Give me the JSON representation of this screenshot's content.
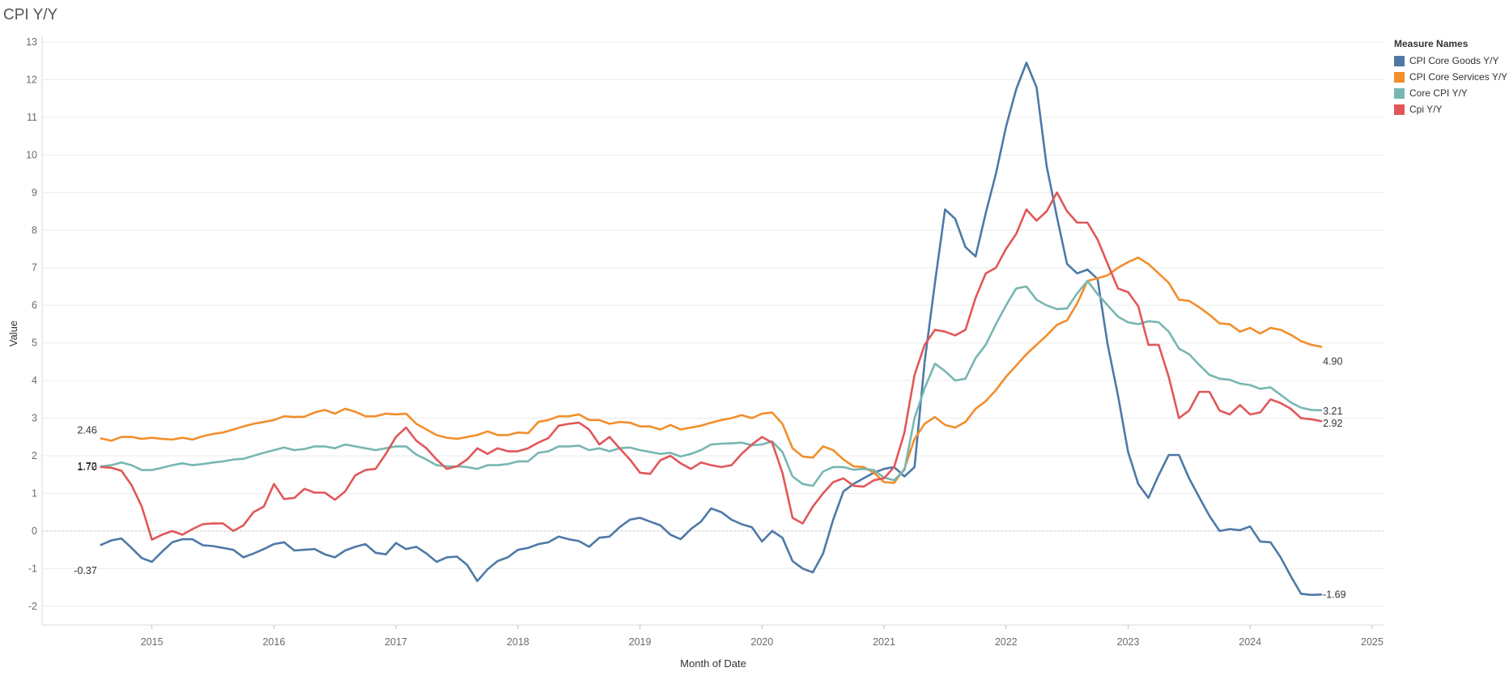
{
  "chart_data": {
    "type": "line",
    "title": "CPI Y/Y",
    "xlabel": "Month of Date",
    "ylabel": "Value",
    "ylim": [
      -2.5,
      13
    ],
    "yticks": [
      -2,
      -1,
      0,
      1,
      2,
      3,
      4,
      5,
      6,
      7,
      8,
      9,
      10,
      11,
      12,
      13
    ],
    "xlim": [
      2014.1,
      2025.1
    ],
    "xticks": [
      2015,
      2016,
      2017,
      2018,
      2019,
      2020,
      2021,
      2022,
      2023,
      2024,
      2025
    ],
    "grid": true,
    "zero_line": true,
    "legend_title": "Measure Names",
    "legend_position": "top-right",
    "x": [
      2014.583,
      2014.667,
      2014.75,
      2014.833,
      2014.917,
      2015.0,
      2015.083,
      2015.167,
      2015.25,
      2015.333,
      2015.417,
      2015.5,
      2015.583,
      2015.667,
      2015.75,
      2015.833,
      2015.917,
      2016.0,
      2016.083,
      2016.167,
      2016.25,
      2016.333,
      2016.417,
      2016.5,
      2016.583,
      2016.667,
      2016.75,
      2016.833,
      2016.917,
      2017.0,
      2017.083,
      2017.167,
      2017.25,
      2017.333,
      2017.417,
      2017.5,
      2017.583,
      2017.667,
      2017.75,
      2017.833,
      2017.917,
      2018.0,
      2018.083,
      2018.167,
      2018.25,
      2018.333,
      2018.417,
      2018.5,
      2018.583,
      2018.667,
      2018.75,
      2018.833,
      2018.917,
      2019.0,
      2019.083,
      2019.167,
      2019.25,
      2019.333,
      2019.417,
      2019.5,
      2019.583,
      2019.667,
      2019.75,
      2019.833,
      2019.917,
      2020.0,
      2020.083,
      2020.167,
      2020.25,
      2020.333,
      2020.417,
      2020.5,
      2020.583,
      2020.667,
      2020.75,
      2020.833,
      2020.917,
      2021.0,
      2021.083,
      2021.167,
      2021.25,
      2021.333,
      2021.417,
      2021.5,
      2021.583,
      2021.667,
      2021.75,
      2021.833,
      2021.917,
      2022.0,
      2022.083,
      2022.167,
      2022.25,
      2022.333,
      2022.417,
      2022.5,
      2022.583,
      2022.667,
      2022.75,
      2022.833,
      2022.917,
      2023.0,
      2023.083,
      2023.167,
      2023.25,
      2023.333,
      2023.417,
      2023.5,
      2023.583,
      2023.667,
      2023.75,
      2023.833,
      2023.917,
      2024.0,
      2024.083,
      2024.167,
      2024.25,
      2024.333,
      2024.417,
      2024.5,
      2024.583
    ],
    "series": [
      {
        "name": "CPI Core Goods Y/Y",
        "color": "#4e79a7",
        "end_label": "-1.69",
        "start_label": "-0.37",
        "values": [
          -0.37,
          -0.25,
          -0.2,
          -0.45,
          -0.72,
          -0.82,
          -0.55,
          -0.3,
          -0.22,
          -0.22,
          -0.38,
          -0.4,
          -0.45,
          -0.5,
          -0.7,
          -0.6,
          -0.48,
          -0.35,
          -0.3,
          -0.52,
          -0.5,
          -0.48,
          -0.62,
          -0.7,
          -0.52,
          -0.42,
          -0.35,
          -0.58,
          -0.62,
          -0.32,
          -0.48,
          -0.42,
          -0.6,
          -0.82,
          -0.7,
          -0.68,
          -0.9,
          -1.33,
          -1.02,
          -0.8,
          -0.7,
          -0.5,
          -0.45,
          -0.35,
          -0.3,
          -0.15,
          -0.22,
          -0.27,
          -0.42,
          -0.18,
          -0.15,
          0.1,
          0.3,
          0.35,
          0.25,
          0.15,
          -0.1,
          -0.22,
          0.05,
          0.25,
          0.6,
          0.5,
          0.3,
          0.18,
          0.1,
          -0.28,
          0.0,
          -0.18,
          -0.8,
          -1.0,
          -1.1,
          -0.6,
          0.3,
          1.05,
          1.25,
          1.4,
          1.55,
          1.65,
          1.7,
          1.45,
          1.7,
          4.5,
          6.6,
          8.55,
          8.3,
          7.55,
          7.3,
          8.45,
          9.5,
          10.75,
          11.75,
          12.45,
          11.8,
          9.7,
          8.35,
          7.1,
          6.85,
          6.95,
          6.7,
          4.95,
          3.6,
          2.1,
          1.25,
          0.88,
          1.48,
          2.02,
          2.02,
          1.4,
          0.9,
          0.4,
          0.0,
          0.05,
          0.02,
          0.12,
          -0.28,
          -0.3,
          -0.7,
          -1.2,
          -1.67,
          -1.7,
          -1.69
        ]
      },
      {
        "name": "CPI Core Services Y/Y",
        "color": "#f28e2b",
        "end_label": "4.90",
        "start_label": "2.46",
        "values": [
          2.46,
          2.4,
          2.5,
          2.5,
          2.45,
          2.48,
          2.45,
          2.43,
          2.48,
          2.43,
          2.52,
          2.58,
          2.62,
          2.7,
          2.78,
          2.85,
          2.9,
          2.95,
          3.05,
          3.03,
          3.04,
          3.15,
          3.22,
          3.12,
          3.25,
          3.17,
          3.05,
          3.05,
          3.12,
          3.1,
          3.12,
          2.85,
          2.7,
          2.55,
          2.48,
          2.45,
          2.5,
          2.55,
          2.65,
          2.55,
          2.55,
          2.62,
          2.6,
          2.9,
          2.95,
          3.05,
          3.05,
          3.1,
          2.95,
          2.95,
          2.85,
          2.9,
          2.88,
          2.78,
          2.78,
          2.7,
          2.82,
          2.7,
          2.75,
          2.8,
          2.88,
          2.95,
          3.0,
          3.08,
          3.0,
          3.12,
          3.15,
          2.85,
          2.2,
          1.98,
          1.95,
          2.25,
          2.15,
          1.9,
          1.72,
          1.7,
          1.55,
          1.3,
          1.28,
          1.65,
          2.45,
          2.85,
          3.03,
          2.82,
          2.75,
          2.9,
          3.25,
          3.45,
          3.75,
          4.1,
          4.4,
          4.7,
          4.95,
          5.2,
          5.48,
          5.6,
          6.05,
          6.65,
          6.72,
          6.8,
          7.0,
          7.15,
          7.27,
          7.1,
          6.85,
          6.6,
          6.15,
          6.12,
          5.95,
          5.75,
          5.52,
          5.5,
          5.3,
          5.4,
          5.25,
          5.4,
          5.35,
          5.22,
          5.05,
          4.95,
          4.9
        ]
      },
      {
        "name": "Core CPI Y/Y",
        "color": "#76b7b2",
        "end_label": "3.21",
        "start_label": "1.72",
        "values": [
          1.72,
          1.75,
          1.82,
          1.75,
          1.62,
          1.62,
          1.68,
          1.75,
          1.8,
          1.75,
          1.78,
          1.82,
          1.85,
          1.9,
          1.92,
          2.0,
          2.08,
          2.15,
          2.22,
          2.15,
          2.18,
          2.25,
          2.25,
          2.2,
          2.3,
          2.25,
          2.2,
          2.15,
          2.2,
          2.25,
          2.25,
          2.03,
          1.9,
          1.75,
          1.72,
          1.72,
          1.7,
          1.65,
          1.75,
          1.75,
          1.78,
          1.85,
          1.85,
          2.08,
          2.12,
          2.25,
          2.25,
          2.27,
          2.15,
          2.2,
          2.12,
          2.2,
          2.22,
          2.15,
          2.1,
          2.05,
          2.08,
          1.98,
          2.05,
          2.15,
          2.3,
          2.32,
          2.33,
          2.35,
          2.28,
          2.3,
          2.38,
          2.1,
          1.45,
          1.25,
          1.2,
          1.58,
          1.7,
          1.7,
          1.63,
          1.65,
          1.62,
          1.42,
          1.35,
          1.62,
          3.0,
          3.8,
          4.45,
          4.25,
          4.0,
          4.05,
          4.6,
          4.95,
          5.5,
          6.0,
          6.45,
          6.5,
          6.15,
          6.0,
          5.9,
          5.92,
          6.32,
          6.65,
          6.3,
          6.0,
          5.7,
          5.55,
          5.5,
          5.58,
          5.55,
          5.3,
          4.85,
          4.7,
          4.42,
          4.15,
          4.05,
          4.02,
          3.92,
          3.88,
          3.78,
          3.82,
          3.62,
          3.42,
          3.28,
          3.22,
          3.21
        ]
      },
      {
        "name": "Cpi Y/Y",
        "color": "#e15759",
        "end_label": "2.92",
        "start_label": "1.70",
        "values": [
          1.7,
          1.68,
          1.6,
          1.22,
          0.65,
          -0.23,
          -0.1,
          0.0,
          -0.1,
          0.05,
          0.18,
          0.2,
          0.2,
          0.0,
          0.15,
          0.5,
          0.65,
          1.25,
          0.85,
          0.88,
          1.12,
          1.02,
          1.02,
          0.83,
          1.05,
          1.48,
          1.62,
          1.65,
          2.05,
          2.5,
          2.75,
          2.4,
          2.2,
          1.9,
          1.65,
          1.72,
          1.9,
          2.2,
          2.05,
          2.2,
          2.12,
          2.12,
          2.2,
          2.35,
          2.47,
          2.8,
          2.85,
          2.88,
          2.7,
          2.3,
          2.5,
          2.2,
          1.9,
          1.55,
          1.52,
          1.88,
          2.0,
          1.8,
          1.65,
          1.82,
          1.75,
          1.7,
          1.75,
          2.05,
          2.3,
          2.5,
          2.35,
          1.55,
          0.35,
          0.2,
          0.65,
          1.0,
          1.3,
          1.4,
          1.2,
          1.18,
          1.35,
          1.4,
          1.7,
          2.62,
          4.15,
          4.95,
          5.35,
          5.3,
          5.2,
          5.35,
          6.2,
          6.85,
          7.0,
          7.5,
          7.9,
          8.55,
          8.25,
          8.5,
          9.0,
          8.5,
          8.2,
          8.2,
          7.75,
          7.1,
          6.45,
          6.35,
          5.98,
          4.95,
          4.95,
          4.1,
          3.0,
          3.2,
          3.7,
          3.7,
          3.2,
          3.1,
          3.35,
          3.1,
          3.15,
          3.5,
          3.4,
          3.25,
          3.0,
          2.97,
          2.92
        ]
      }
    ]
  }
}
